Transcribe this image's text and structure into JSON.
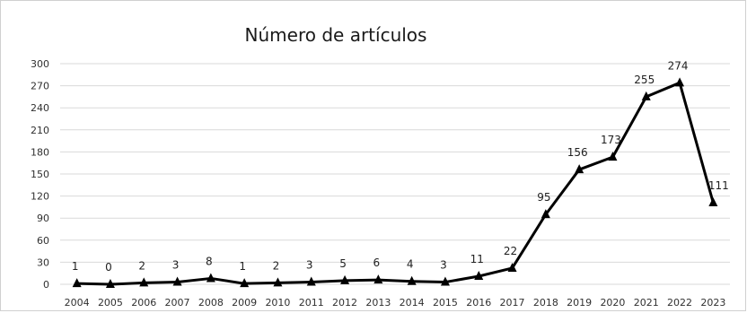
{
  "chart_data": {
    "type": "line",
    "title": "Número de artículos",
    "xlabel": "",
    "ylabel": "",
    "x": [
      "2004",
      "2005",
      "2006",
      "2007",
      "2008",
      "2009",
      "2010",
      "2011",
      "2012",
      "2013",
      "2014",
      "2015",
      "2016",
      "2017",
      "2018",
      "2019",
      "2020",
      "2021",
      "2022",
      "2023"
    ],
    "series": [
      {
        "values": [
          1,
          0,
          2,
          3,
          8,
          1,
          2,
          3,
          5,
          6,
          4,
          3,
          11,
          22,
          95,
          156,
          173,
          255,
          274,
          111
        ],
        "color": "#000000",
        "marker": "triangle"
      }
    ],
    "data_labels": [
      "1",
      "0",
      "2",
      "3",
      "8",
      "1",
      "2",
      "3",
      "5",
      "6",
      "4",
      "3",
      "11",
      "22",
      "95",
      "156",
      "173",
      "255",
      "274",
      "111"
    ],
    "ylim": [
      0,
      300
    ],
    "yticks": [
      "0",
      "30",
      "60",
      "90",
      "120",
      "150",
      "180",
      "210",
      "240",
      "270",
      "300"
    ],
    "grid": true,
    "legend": "none"
  }
}
